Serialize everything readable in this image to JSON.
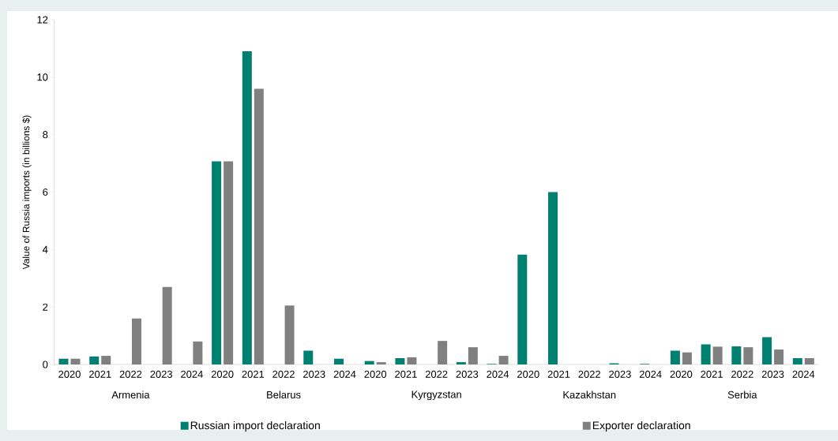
{
  "chart_data": {
    "type": "bar",
    "ylabel": "Value of Russia imports (in billions $)",
    "categories": [
      "2020",
      "2021",
      "2022",
      "2023",
      "2024",
      "2020",
      "2021",
      "2022",
      "2023",
      "2024",
      "2020",
      "2021",
      "2022",
      "2023",
      "2024",
      "2020",
      "2021",
      "2022",
      "2023",
      "2024",
      "2020",
      "2021",
      "2022",
      "2023",
      "2024"
    ],
    "annotations": [
      "Armenia",
      "Belarus",
      "Kyrgyzstan",
      "Kazakhstan",
      "Serbia"
    ],
    "series": [
      {
        "name": "Russian import declaration",
        "color": "#008070",
        "values": [
          0.2,
          0.28,
          null,
          null,
          null,
          7.07,
          10.9,
          null,
          0.48,
          0.2,
          0.12,
          0.22,
          null,
          0.08,
          0.02,
          3.82,
          6.0,
          null,
          0.04,
          0.02,
          0.48,
          0.7,
          0.63,
          0.95,
          0.22
        ]
      },
      {
        "name": "Exporter declaration",
        "color": "#808080",
        "values": [
          0.2,
          0.3,
          1.6,
          2.7,
          0.8,
          7.07,
          9.6,
          2.05,
          null,
          null,
          0.08,
          0.25,
          0.82,
          0.6,
          0.3,
          null,
          null,
          null,
          null,
          null,
          0.42,
          0.62,
          0.6,
          0.52,
          0.22
        ]
      }
    ],
    "ylim": [
      0,
      12
    ],
    "yticks": [
      0,
      2,
      4,
      6,
      8,
      10,
      12
    ],
    "grid": false,
    "legend": "bottom"
  }
}
